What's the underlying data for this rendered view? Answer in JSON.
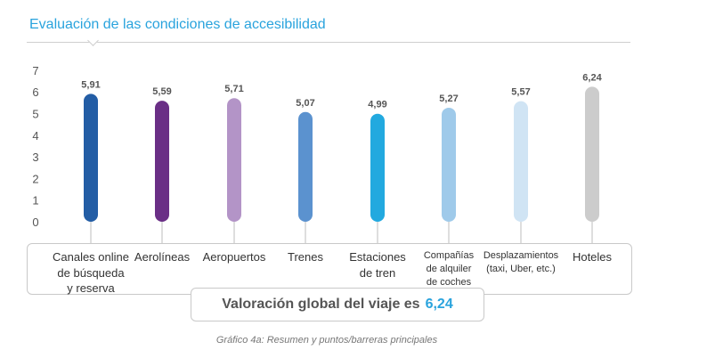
{
  "header": {
    "title": "Evaluación de las condiciones de accesibilidad"
  },
  "summary": {
    "label": "Valoración global del viaje es",
    "value": "6,24"
  },
  "caption": "Gráfico 4a: Resumen y puntos/barreras principales",
  "chart_data": {
    "type": "bar",
    "title": "Evaluación de las condiciones de accesibilidad",
    "ylim": [
      0,
      7
    ],
    "yticks": [
      0,
      1,
      2,
      3,
      4,
      5,
      6,
      7
    ],
    "grid": false,
    "categories": [
      "Canales online de búsqueda y reserva",
      "Aerolíneas",
      "Aeropuertos",
      "Trenes",
      "Estaciones de tren",
      "Compañías de alquiler de coches",
      "Desplazamientos (taxi, Uber, etc.)",
      "Hoteles"
    ],
    "category_lines": [
      [
        "Canales online",
        "de búsqueda",
        "y reserva"
      ],
      [
        "Aerolíneas"
      ],
      [
        "Aeropuertos"
      ],
      [
        "Trenes"
      ],
      [
        "Estaciones",
        "de tren"
      ],
      [
        "Compañías",
        "de alquiler",
        "de coches"
      ],
      [
        "Desplazamientos",
        "(taxi, Uber, etc.)"
      ],
      [
        "Hoteles"
      ]
    ],
    "values": [
      5.91,
      5.59,
      5.71,
      5.07,
      4.99,
      5.27,
      5.57,
      6.24
    ],
    "value_labels": [
      "5,91",
      "5,59",
      "5,71",
      "5,07",
      "4,99",
      "5,27",
      "5,57",
      "6,24"
    ],
    "colors": [
      "#235da5",
      "#6a2f86",
      "#b394c7",
      "#5b92cf",
      "#22a9df",
      "#9fcaea",
      "#d0e4f4",
      "#cccccc"
    ]
  }
}
